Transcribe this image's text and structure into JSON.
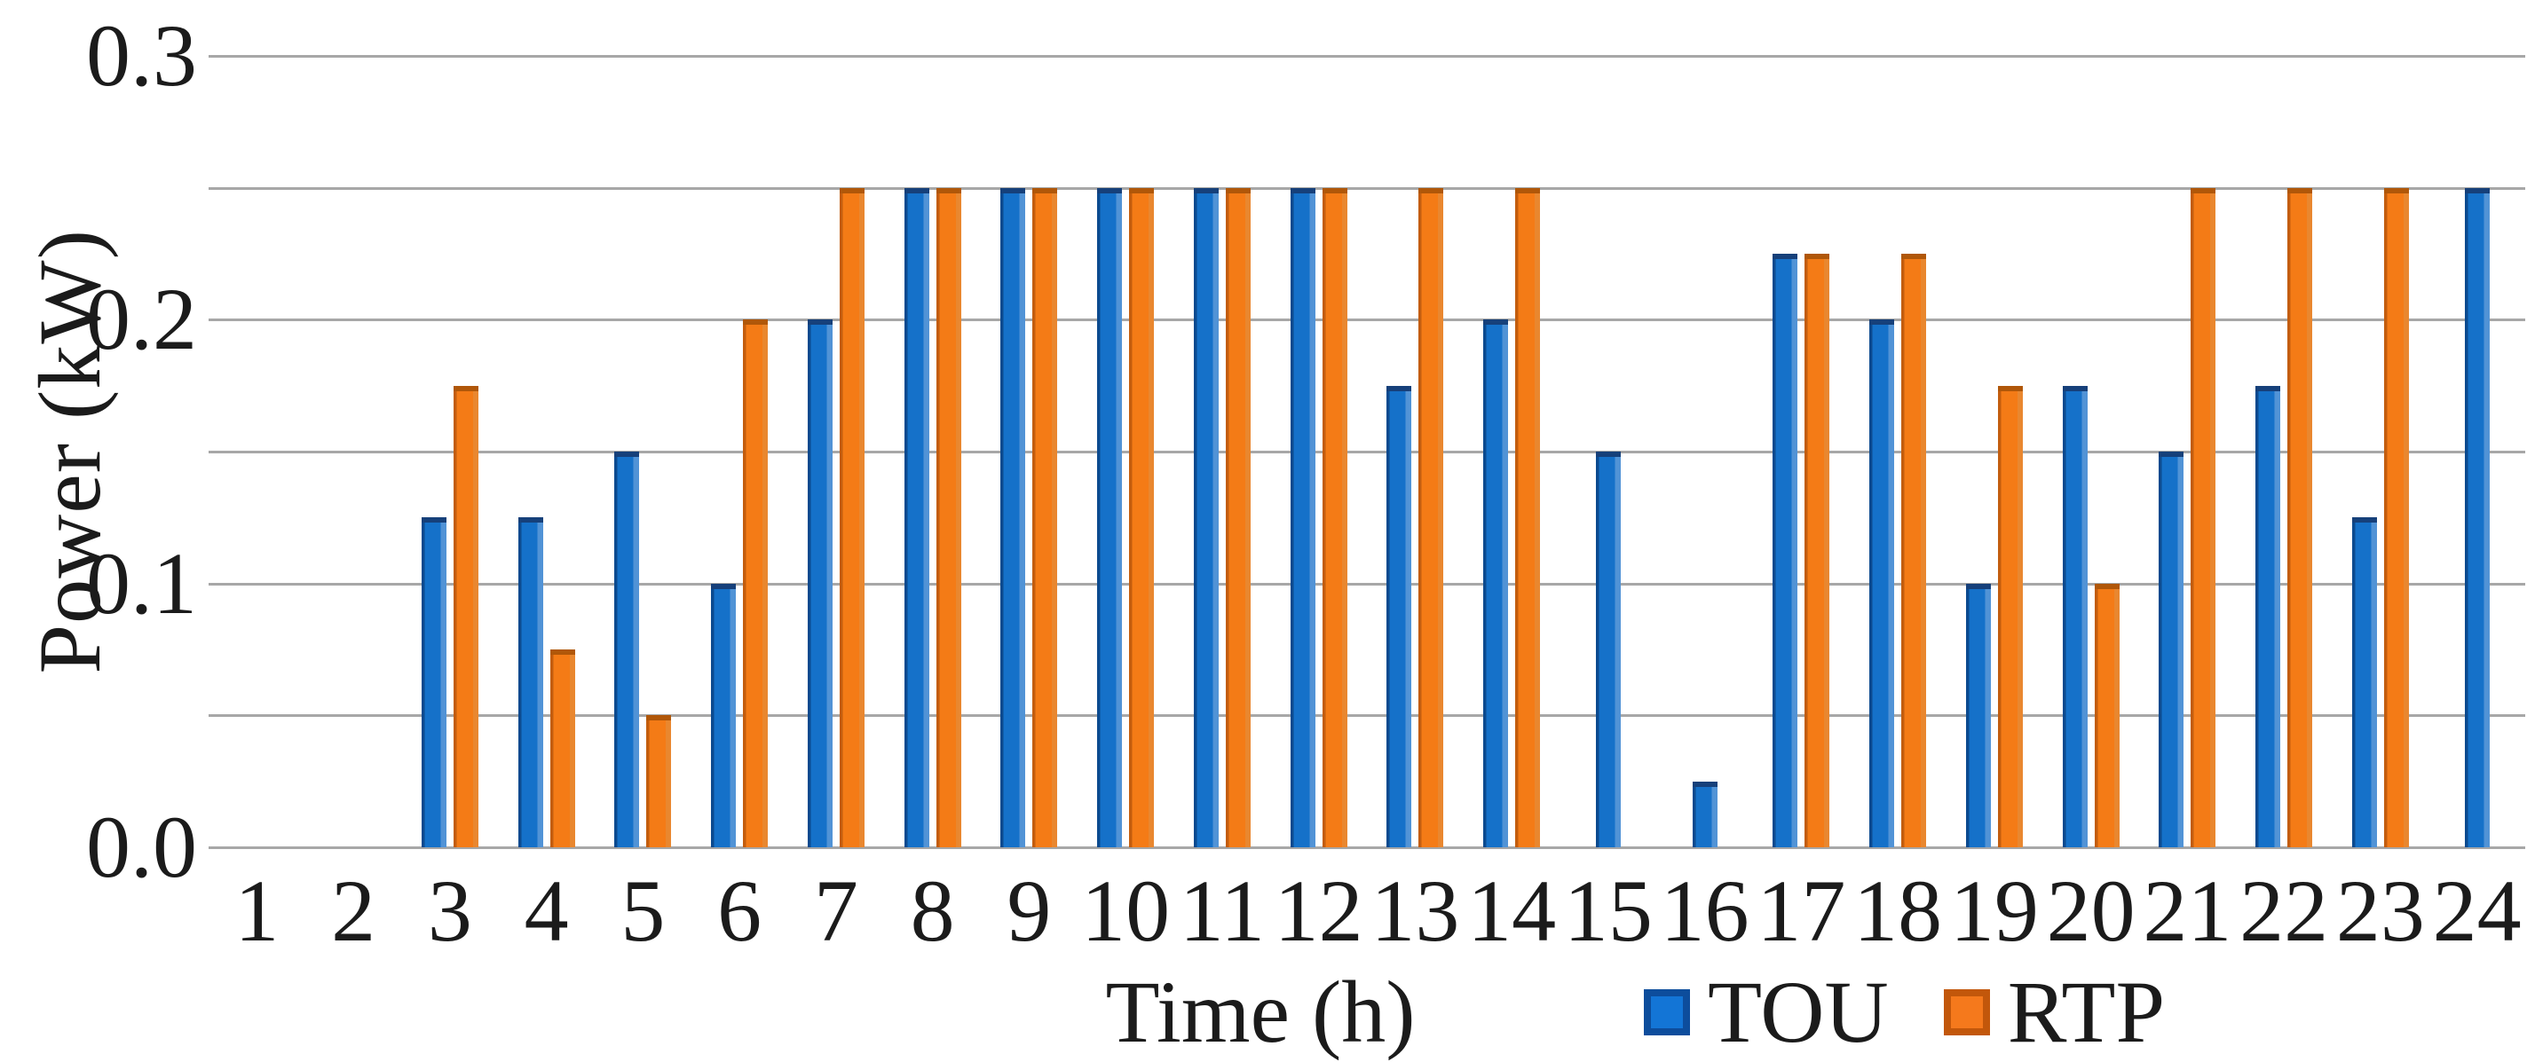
{
  "chart_data": {
    "type": "bar",
    "title": "",
    "xlabel": "Time (h)",
    "ylabel": "Power (kW)",
    "categories": [
      "1",
      "2",
      "3",
      "4",
      "5",
      "6",
      "7",
      "8",
      "9",
      "10",
      "11",
      "12",
      "13",
      "14",
      "15",
      "16",
      "17",
      "18",
      "19",
      "20",
      "21",
      "22",
      "23",
      "24"
    ],
    "series": [
      {
        "name": "TOU",
        "color": "#1571c9",
        "values": [
          0,
          0,
          0.125,
          0.125,
          0.15,
          0.1,
          0.2,
          0.25,
          0.25,
          0.25,
          0.25,
          0.25,
          0.175,
          0.2,
          0.15,
          0.025,
          0.225,
          0.2,
          0.1,
          0.175,
          0.15,
          0.175,
          0.125,
          0.25
        ]
      },
      {
        "name": "RTP",
        "color": "#f47b16",
        "values": [
          0,
          0,
          0.175,
          0.075,
          0.05,
          0.2,
          0.25,
          0.25,
          0.25,
          0.25,
          0.25,
          0.25,
          0.25,
          0.25,
          0,
          0,
          0.225,
          0.225,
          0.175,
          0.1,
          0.25,
          0.25,
          0.25,
          0
        ]
      }
    ],
    "ylim": [
      0,
      0.3
    ],
    "ytick_labels": [
      "0.3",
      "0.2",
      "0.1",
      "0.0"
    ],
    "ytick_values": [
      0.3,
      0.2,
      0.1,
      0.0
    ],
    "gridline_step": 0.05,
    "grid": "horizontal",
    "grid_color": "#a7a7a7",
    "legend_position": "bottom-right"
  }
}
